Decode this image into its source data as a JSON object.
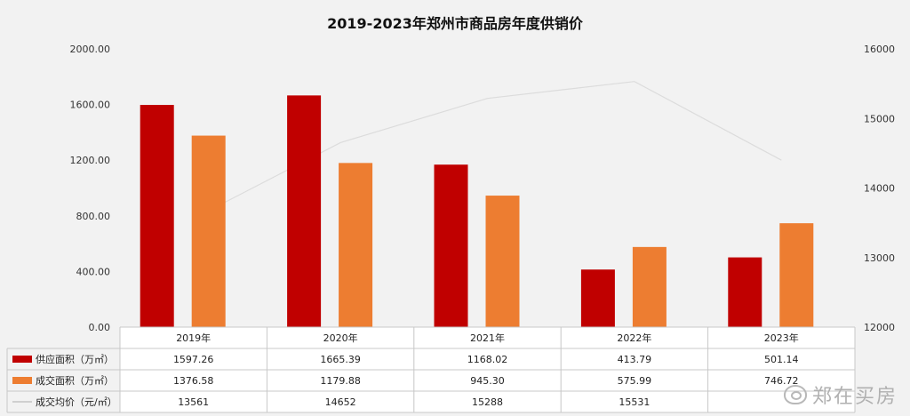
{
  "chart_data": {
    "type": "bar",
    "title": "2019-2023年郑州市商品房年度供销价",
    "categories": [
      "2019年",
      "2020年",
      "2021年",
      "2022年",
      "2023年"
    ],
    "series": [
      {
        "name": "供应面积（万㎡）",
        "values": [
          1597.26,
          1665.39,
          1168.02,
          413.79,
          501.14
        ],
        "color": "#c00000",
        "axis": "left",
        "kind": "bar"
      },
      {
        "name": "成交面积（万㎡）",
        "values": [
          1376.58,
          1179.88,
          945.3,
          575.99,
          746.72
        ],
        "color": "#ed7d31",
        "axis": "left",
        "kind": "bar"
      },
      {
        "name": "成交均价（元/㎡）",
        "values": [
          13561,
          14652,
          15288,
          15531,
          14400
        ],
        "display": [
          "13561",
          "14652",
          "15288",
          "15531",
          ""
        ],
        "color": "#d9d9d9",
        "axis": "right",
        "kind": "line"
      }
    ],
    "left_axis": {
      "ylim": [
        0,
        2000
      ],
      "ticks": [
        "0.00",
        "400.00",
        "800.00",
        "1200.00",
        "1600.00",
        "2000.00"
      ]
    },
    "right_axis": {
      "ylim": [
        12000,
        16000
      ],
      "ticks": [
        "12000",
        "13000",
        "14000",
        "15000",
        "16000"
      ]
    },
    "table": {
      "rows": [
        [
          "1597.26",
          "1665.39",
          "1168.02",
          "413.79",
          "501.14"
        ],
        [
          "1376.58",
          "1179.88",
          "945.30",
          "575.99",
          "746.72"
        ],
        [
          "13561",
          "14652",
          "15288",
          "15531",
          ""
        ]
      ]
    },
    "grid": false,
    "legend": "table"
  },
  "watermark": {
    "text": "郑在买房",
    "icon": "weibo-icon"
  }
}
